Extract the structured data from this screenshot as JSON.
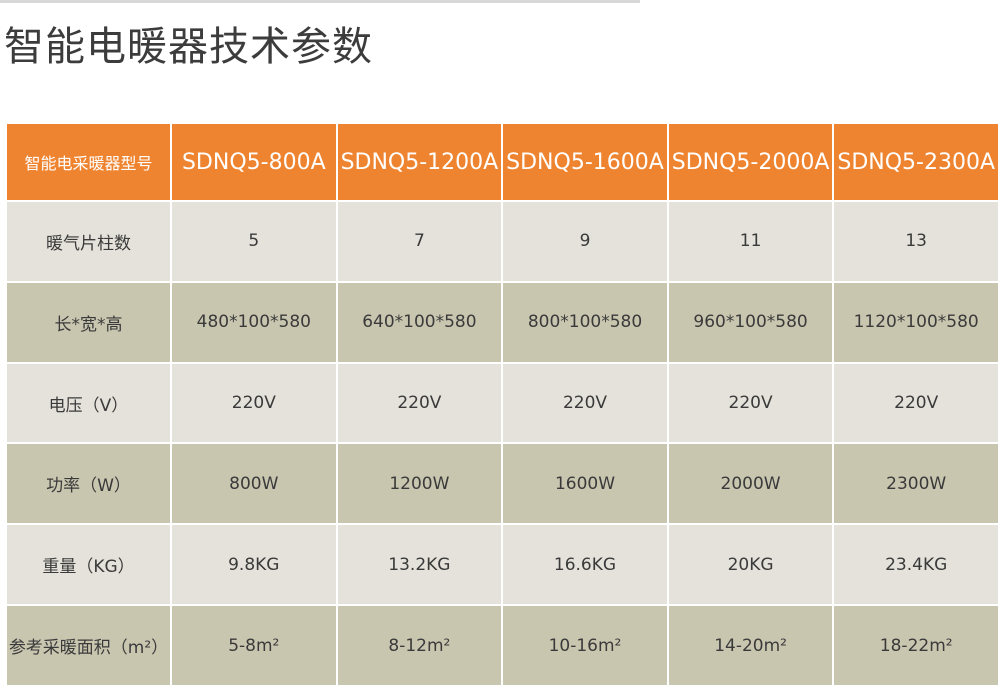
{
  "title": "智能电暖器技术参数",
  "table": {
    "header": [
      "智能电采暖器型号",
      "SDNQ5-800A",
      "SDNQ5-1200A",
      "SDNQ5-1600A",
      "SDNQ5-2000A",
      "SDNQ5-2300A"
    ],
    "rows": [
      [
        "暖气片柱数",
        "5",
        "7",
        "9",
        "11",
        "13"
      ],
      [
        "长*宽*高",
        "480*100*580",
        "640*100*580",
        "800*100*580",
        "960*100*580",
        "1120*100*580"
      ],
      [
        "电压（V）",
        "220V",
        "220V",
        "220V",
        "220V",
        "220V"
      ],
      [
        "功率（W）",
        "800W",
        "1200W",
        "1600W",
        "2000W",
        "2300W"
      ],
      [
        "重量（KG）",
        "9.8KG",
        "13.2KG",
        "16.6KG",
        "20KG",
        "23.4KG"
      ],
      [
        "参考采暖面积（m²）",
        "5-8m²",
        "8-12m²",
        "10-16m²",
        "14-20m²",
        "18-22m²"
      ]
    ]
  }
}
